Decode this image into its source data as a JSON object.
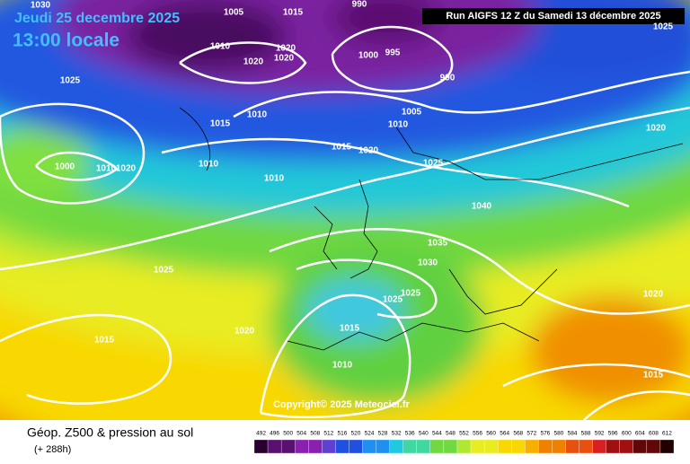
{
  "header": {
    "date": "Jeudi 25 decembre 2025",
    "time": "13:00 locale"
  },
  "run": "Run AIGFS 12 Z du Samedi 13 décembre 2025",
  "copyright": "Copyright© 2025 Meteociel.fr",
  "legend": {
    "title": "Géop. Z500 & pression au sol",
    "lead": "(+ 288h)",
    "scale": [
      492,
      496,
      500,
      504,
      508,
      512,
      516,
      520,
      524,
      528,
      532,
      536,
      540,
      544,
      548,
      552,
      556,
      560,
      564,
      568,
      572,
      576,
      580,
      584,
      588,
      592,
      596,
      600,
      604,
      608,
      612
    ]
  },
  "isobar_labels": [
    "1030",
    "1005",
    "1015",
    "990",
    "1010",
    "1020",
    "1020",
    "1020",
    "1000",
    "995",
    "990",
    "1025",
    "1015",
    "1010",
    "1005",
    "1010",
    "1010",
    "1015",
    "1020",
    "1025",
    "1000",
    "1010",
    "1020",
    "1010",
    "1040",
    "1035",
    "1030",
    "1025",
    "1025",
    "1015",
    "1010",
    "1025",
    "1020",
    "1015",
    "1020",
    "1020",
    "1015",
    "1025"
  ]
}
